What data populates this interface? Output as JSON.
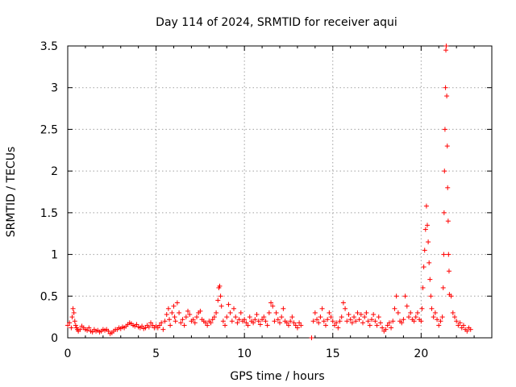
{
  "chart_data": {
    "type": "scatter",
    "title": "Day 114 of 2024, SRMTID for receiver aqui",
    "xlabel": "GPS time / hours",
    "ylabel": "SRMTID / TECUs",
    "xlim": [
      0,
      24
    ],
    "ylim": [
      0,
      3.5
    ],
    "xticks": [
      0,
      5,
      10,
      15,
      20
    ],
    "xtick_labels": [
      "0",
      "5",
      "10",
      "15",
      "20"
    ],
    "yticks": [
      0,
      0.5,
      1,
      1.5,
      2,
      2.5,
      3,
      3.5
    ],
    "ytick_labels": [
      "0",
      "0.5",
      "1",
      "1.5",
      "2",
      "2.5",
      "3",
      "3.5"
    ],
    "grid": true,
    "marker": "+",
    "series": [
      {
        "name": "SRMTID",
        "color": "#ff0000",
        "points": [
          [
            0.0,
            0.15
          ],
          [
            0.1,
            0.18
          ],
          [
            0.2,
            0.12
          ],
          [
            0.25,
            0.25
          ],
          [
            0.3,
            0.35
          ],
          [
            0.35,
            0.3
          ],
          [
            0.4,
            0.2
          ],
          [
            0.45,
            0.15
          ],
          [
            0.5,
            0.12
          ],
          [
            0.55,
            0.1
          ],
          [
            0.6,
            0.08
          ],
          [
            0.7,
            0.1
          ],
          [
            0.8,
            0.14
          ],
          [
            0.9,
            0.12
          ],
          [
            1.0,
            0.1
          ],
          [
            1.1,
            0.09
          ],
          [
            1.2,
            0.12
          ],
          [
            1.3,
            0.08
          ],
          [
            1.4,
            0.07
          ],
          [
            1.5,
            0.1
          ],
          [
            1.6,
            0.08
          ],
          [
            1.7,
            0.09
          ],
          [
            1.8,
            0.07
          ],
          [
            1.9,
            0.08
          ],
          [
            2.0,
            0.1
          ],
          [
            2.1,
            0.09
          ],
          [
            2.2,
            0.1
          ],
          [
            2.3,
            0.08
          ],
          [
            2.4,
            0.05
          ],
          [
            2.5,
            0.06
          ],
          [
            2.6,
            0.08
          ],
          [
            2.7,
            0.1
          ],
          [
            2.8,
            0.1
          ],
          [
            2.9,
            0.12
          ],
          [
            3.0,
            0.11
          ],
          [
            3.1,
            0.13
          ],
          [
            3.2,
            0.12
          ],
          [
            3.3,
            0.14
          ],
          [
            3.4,
            0.16
          ],
          [
            3.5,
            0.18
          ],
          [
            3.6,
            0.17
          ],
          [
            3.7,
            0.15
          ],
          [
            3.8,
            0.14
          ],
          [
            3.9,
            0.16
          ],
          [
            4.0,
            0.13
          ],
          [
            4.1,
            0.12
          ],
          [
            4.2,
            0.14
          ],
          [
            4.3,
            0.11
          ],
          [
            4.4,
            0.12
          ],
          [
            4.5,
            0.15
          ],
          [
            4.6,
            0.13
          ],
          [
            4.7,
            0.18
          ],
          [
            4.8,
            0.15
          ],
          [
            4.9,
            0.12
          ],
          [
            5.0,
            0.14
          ],
          [
            5.1,
            0.12
          ],
          [
            5.2,
            0.15
          ],
          [
            5.3,
            0.18
          ],
          [
            5.4,
            0.1
          ],
          [
            5.5,
            0.2
          ],
          [
            5.6,
            0.28
          ],
          [
            5.7,
            0.35
          ],
          [
            5.75,
            0.22
          ],
          [
            5.8,
            0.15
          ],
          [
            5.9,
            0.3
          ],
          [
            6.0,
            0.38
          ],
          [
            6.05,
            0.25
          ],
          [
            6.1,
            0.2
          ],
          [
            6.2,
            0.42
          ],
          [
            6.3,
            0.3
          ],
          [
            6.4,
            0.18
          ],
          [
            6.5,
            0.22
          ],
          [
            6.6,
            0.15
          ],
          [
            6.7,
            0.25
          ],
          [
            6.8,
            0.32
          ],
          [
            6.9,
            0.28
          ],
          [
            7.0,
            0.2
          ],
          [
            7.1,
            0.22
          ],
          [
            7.2,
            0.18
          ],
          [
            7.3,
            0.25
          ],
          [
            7.4,
            0.3
          ],
          [
            7.5,
            0.32
          ],
          [
            7.6,
            0.22
          ],
          [
            7.7,
            0.2
          ],
          [
            7.8,
            0.18
          ],
          [
            7.9,
            0.15
          ],
          [
            8.0,
            0.2
          ],
          [
            8.1,
            0.18
          ],
          [
            8.2,
            0.22
          ],
          [
            8.3,
            0.25
          ],
          [
            8.4,
            0.3
          ],
          [
            8.5,
            0.45
          ],
          [
            8.55,
            0.6
          ],
          [
            8.6,
            0.62
          ],
          [
            8.65,
            0.5
          ],
          [
            8.7,
            0.38
          ],
          [
            8.8,
            0.2
          ],
          [
            8.9,
            0.15
          ],
          [
            9.0,
            0.25
          ],
          [
            9.1,
            0.4
          ],
          [
            9.2,
            0.3
          ],
          [
            9.3,
            0.2
          ],
          [
            9.4,
            0.35
          ],
          [
            9.5,
            0.25
          ],
          [
            9.6,
            0.18
          ],
          [
            9.7,
            0.22
          ],
          [
            9.8,
            0.3
          ],
          [
            9.9,
            0.2
          ],
          [
            10.0,
            0.22
          ],
          [
            10.1,
            0.18
          ],
          [
            10.2,
            0.15
          ],
          [
            10.3,
            0.25
          ],
          [
            10.4,
            0.2
          ],
          [
            10.5,
            0.18
          ],
          [
            10.6,
            0.22
          ],
          [
            10.7,
            0.28
          ],
          [
            10.8,
            0.2
          ],
          [
            10.9,
            0.16
          ],
          [
            11.0,
            0.22
          ],
          [
            11.1,
            0.25
          ],
          [
            11.2,
            0.2
          ],
          [
            11.3,
            0.15
          ],
          [
            11.4,
            0.3
          ],
          [
            11.5,
            0.42
          ],
          [
            11.6,
            0.38
          ],
          [
            11.7,
            0.2
          ],
          [
            11.8,
            0.3
          ],
          [
            11.9,
            0.22
          ],
          [
            12.0,
            0.18
          ],
          [
            12.1,
            0.25
          ],
          [
            12.2,
            0.35
          ],
          [
            12.3,
            0.2
          ],
          [
            12.4,
            0.18
          ],
          [
            12.5,
            0.15
          ],
          [
            12.6,
            0.2
          ],
          [
            12.7,
            0.25
          ],
          [
            12.8,
            0.18
          ],
          [
            12.9,
            0.15
          ],
          [
            13.0,
            0.12
          ],
          [
            13.1,
            0.18
          ],
          [
            13.2,
            0.15
          ],
          [
            13.8,
            0.0
          ],
          [
            13.9,
            0.2
          ],
          [
            14.0,
            0.3
          ],
          [
            14.1,
            0.22
          ],
          [
            14.2,
            0.18
          ],
          [
            14.3,
            0.25
          ],
          [
            14.4,
            0.35
          ],
          [
            14.5,
            0.2
          ],
          [
            14.6,
            0.15
          ],
          [
            14.7,
            0.22
          ],
          [
            14.8,
            0.3
          ],
          [
            14.9,
            0.25
          ],
          [
            15.0,
            0.2
          ],
          [
            15.1,
            0.15
          ],
          [
            15.2,
            0.18
          ],
          [
            15.3,
            0.12
          ],
          [
            15.4,
            0.2
          ],
          [
            15.5,
            0.25
          ],
          [
            15.6,
            0.42
          ],
          [
            15.7,
            0.35
          ],
          [
            15.8,
            0.2
          ],
          [
            15.9,
            0.28
          ],
          [
            16.0,
            0.22
          ],
          [
            16.1,
            0.18
          ],
          [
            16.2,
            0.25
          ],
          [
            16.3,
            0.2
          ],
          [
            16.4,
            0.3
          ],
          [
            16.5,
            0.22
          ],
          [
            16.6,
            0.28
          ],
          [
            16.7,
            0.18
          ],
          [
            16.8,
            0.25
          ],
          [
            16.9,
            0.3
          ],
          [
            17.0,
            0.2
          ],
          [
            17.1,
            0.15
          ],
          [
            17.2,
            0.22
          ],
          [
            17.3,
            0.28
          ],
          [
            17.4,
            0.2
          ],
          [
            17.5,
            0.15
          ],
          [
            17.6,
            0.25
          ],
          [
            17.7,
            0.18
          ],
          [
            17.8,
            0.12
          ],
          [
            17.9,
            0.08
          ],
          [
            18.0,
            0.1
          ],
          [
            18.1,
            0.15
          ],
          [
            18.2,
            0.18
          ],
          [
            18.3,
            0.12
          ],
          [
            18.4,
            0.2
          ],
          [
            18.5,
            0.35
          ],
          [
            18.6,
            0.5
          ],
          [
            18.7,
            0.3
          ],
          [
            18.8,
            0.2
          ],
          [
            18.9,
            0.18
          ],
          [
            19.0,
            0.22
          ],
          [
            19.1,
            0.5
          ],
          [
            19.2,
            0.38
          ],
          [
            19.3,
            0.25
          ],
          [
            19.4,
            0.3
          ],
          [
            19.5,
            0.22
          ],
          [
            19.6,
            0.2
          ],
          [
            19.7,
            0.25
          ],
          [
            19.8,
            0.3
          ],
          [
            19.9,
            0.22
          ],
          [
            20.0,
            0.2
          ],
          [
            20.05,
            0.35
          ],
          [
            20.1,
            0.6
          ],
          [
            20.15,
            0.85
          ],
          [
            20.2,
            1.05
          ],
          [
            20.25,
            1.3
          ],
          [
            20.3,
            1.58
          ],
          [
            20.35,
            1.35
          ],
          [
            20.4,
            1.15
          ],
          [
            20.45,
            0.9
          ],
          [
            20.5,
            0.7
          ],
          [
            20.55,
            0.5
          ],
          [
            20.6,
            0.35
          ],
          [
            20.7,
            0.25
          ],
          [
            20.8,
            0.3
          ],
          [
            20.9,
            0.22
          ],
          [
            21.0,
            0.15
          ],
          [
            21.1,
            0.2
          ],
          [
            21.2,
            0.25
          ],
          [
            21.25,
            0.6
          ],
          [
            21.28,
            1.0
          ],
          [
            21.3,
            1.5
          ],
          [
            21.32,
            2.0
          ],
          [
            21.35,
            2.5
          ],
          [
            21.38,
            3.0
          ],
          [
            21.4,
            3.45
          ],
          [
            21.42,
            3.5
          ],
          [
            21.45,
            2.9
          ],
          [
            21.48,
            2.3
          ],
          [
            21.5,
            1.8
          ],
          [
            21.53,
            1.4
          ],
          [
            21.55,
            1.0
          ],
          [
            21.58,
            0.8
          ],
          [
            21.6,
            0.52
          ],
          [
            21.7,
            0.5
          ],
          [
            21.8,
            0.3
          ],
          [
            21.9,
            0.25
          ],
          [
            22.0,
            0.2
          ],
          [
            22.1,
            0.15
          ],
          [
            22.2,
            0.18
          ],
          [
            22.3,
            0.12
          ],
          [
            22.4,
            0.15
          ],
          [
            22.5,
            0.1
          ],
          [
            22.6,
            0.08
          ],
          [
            22.7,
            0.12
          ],
          [
            22.8,
            0.1
          ]
        ]
      }
    ]
  }
}
